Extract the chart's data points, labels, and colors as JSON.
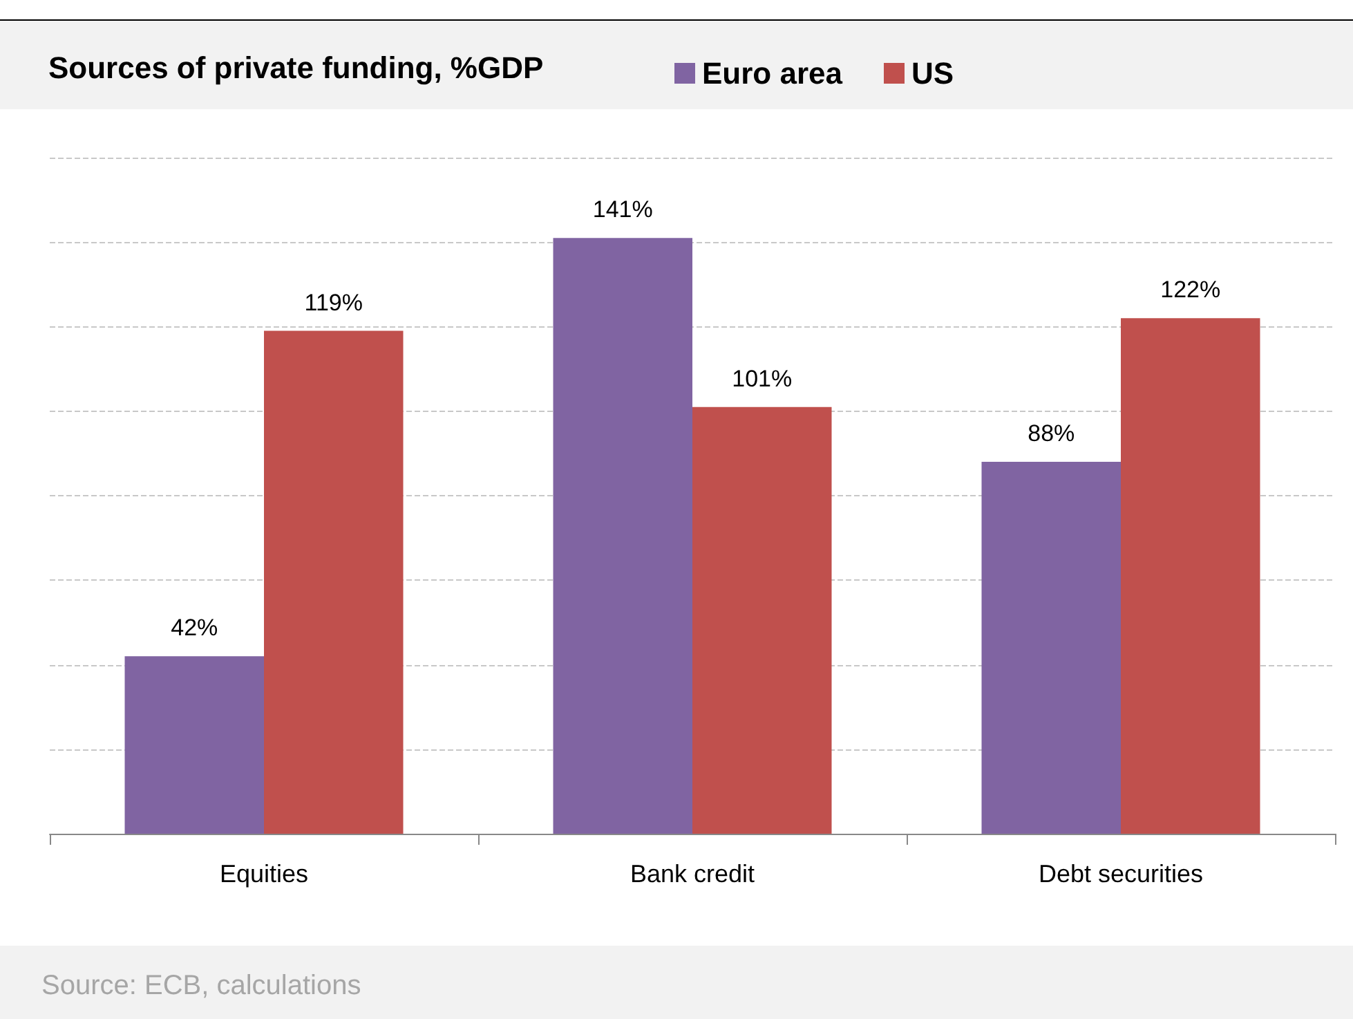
{
  "chart_data": {
    "type": "bar",
    "title": "Sources of private funding, %GDP",
    "categories": [
      "Equities",
      "Bank credit",
      "Debt securities"
    ],
    "series": [
      {
        "name": "Euro area",
        "color": "#8064a2",
        "values": [
          42,
          141,
          88
        ],
        "value_labels": [
          "42%",
          "141%",
          "88%"
        ]
      },
      {
        "name": "US",
        "color": "#c0504d",
        "values": [
          119,
          101,
          122
        ],
        "value_labels": [
          "119%",
          "101%",
          "122%"
        ]
      }
    ],
    "ylim": [
      0,
      160
    ],
    "yticks": [
      {
        "value": 0,
        "label": null
      },
      {
        "value": 20,
        "label": null
      },
      {
        "value": 40,
        "label": null
      },
      {
        "value": 60,
        "label": null
      },
      {
        "value": 80,
        "label": null
      },
      {
        "value": 100,
        "label": null
      },
      {
        "value": 120,
        "label": null
      },
      {
        "value": 140,
        "label": null
      },
      {
        "value": 160,
        "label": null
      }
    ],
    "tick_labels": "x",
    "grid": "y",
    "legend": "top",
    "annotations": [
      "Source: ECB, calculations"
    ]
  }
}
